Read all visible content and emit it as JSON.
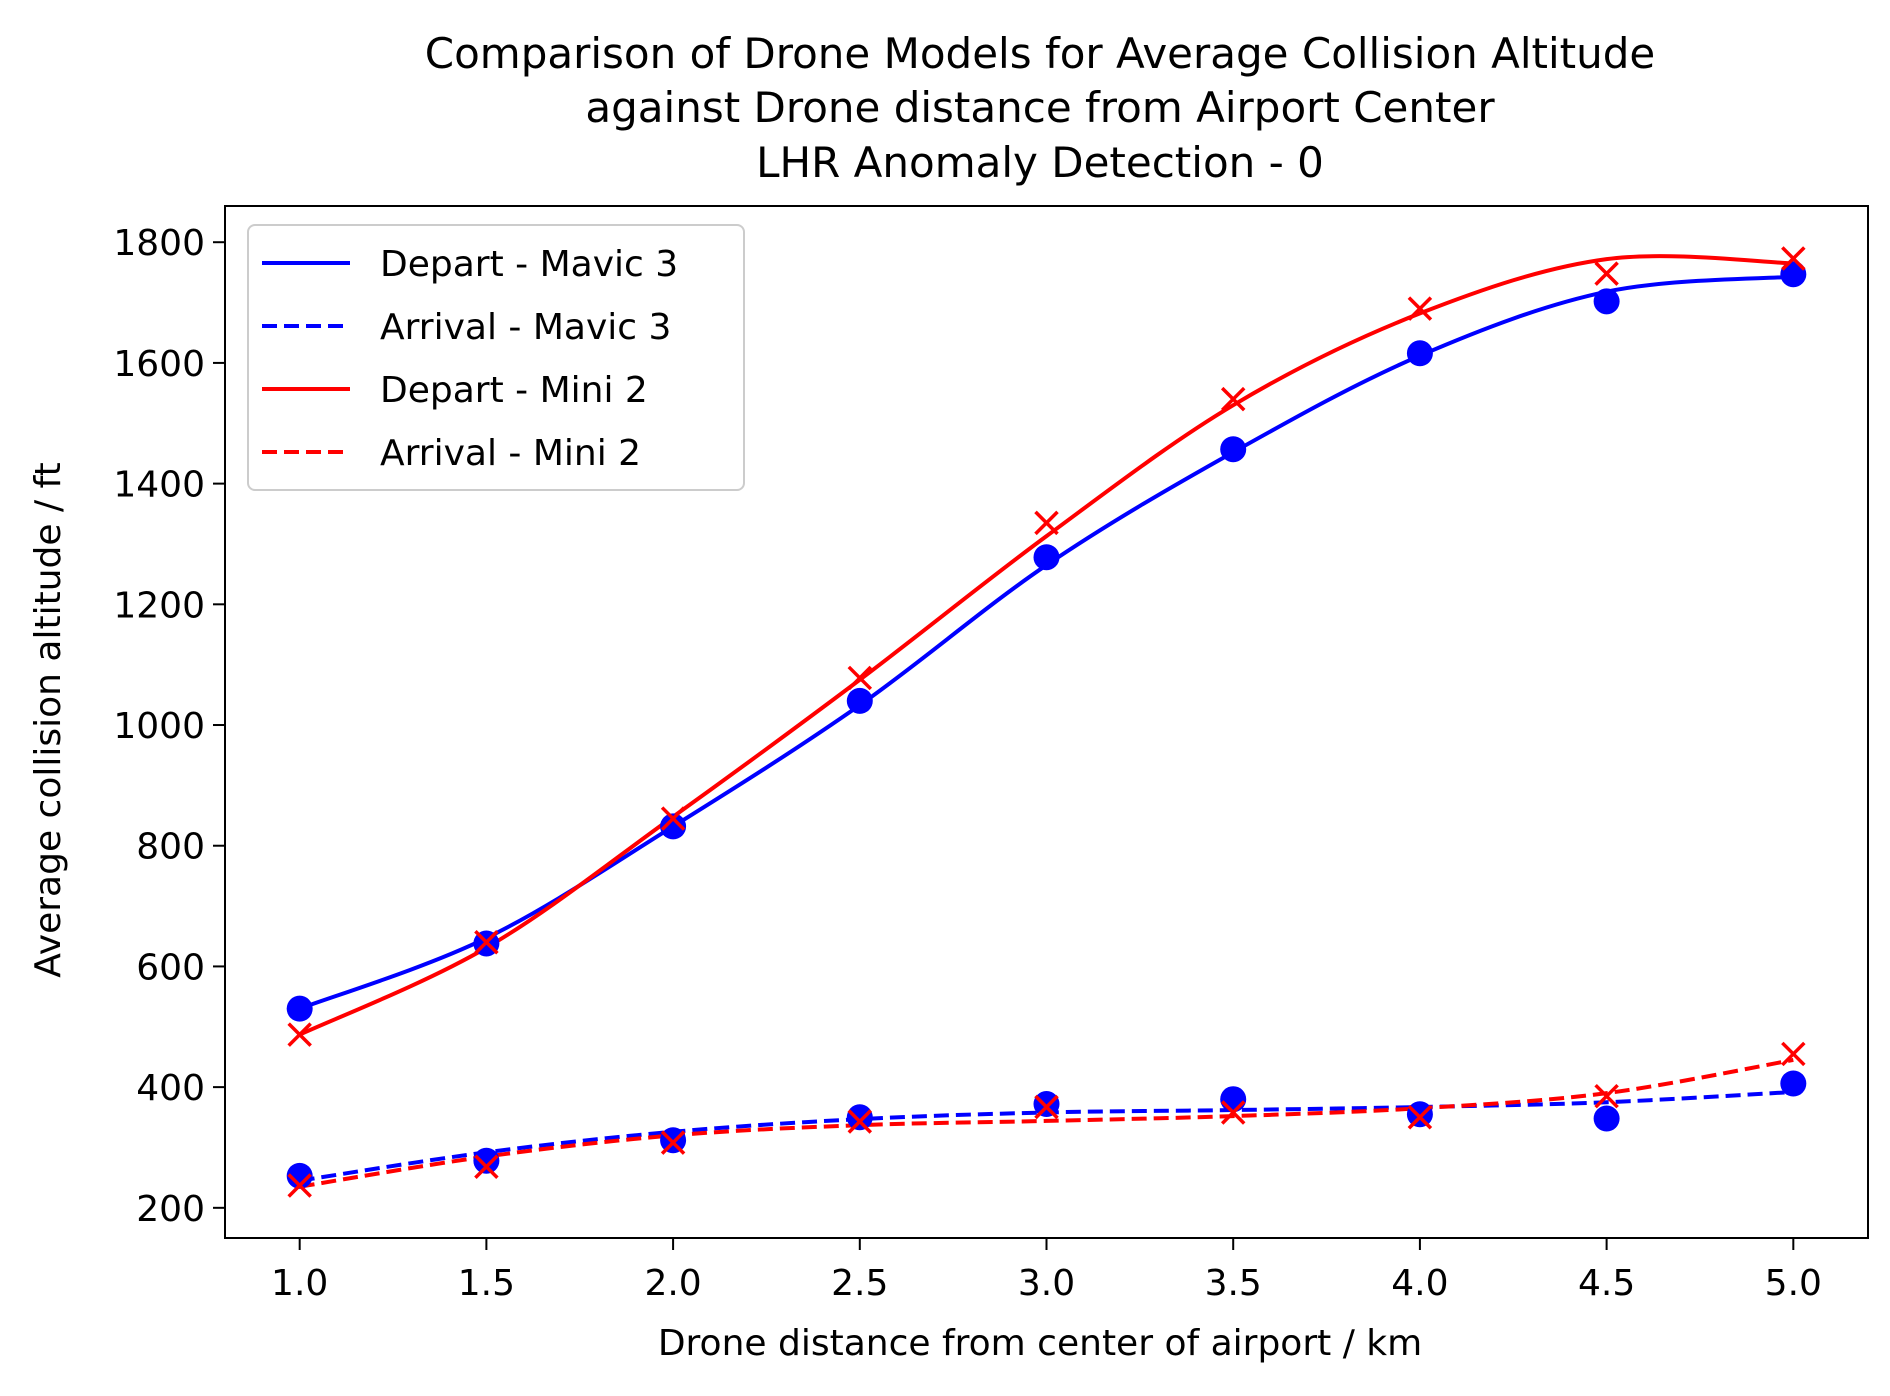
{
  "chart_data": {
    "type": "line",
    "title_lines": [
      "Comparison of Drone Models for Average Collision Altitude",
      "against Drone distance from Airport Center",
      "LHR Anomaly Detection - 0"
    ],
    "xlabel": "Drone distance from center of airport / km",
    "ylabel": "Average collision altitude / ft",
    "xlim": [
      0.8,
      5.2
    ],
    "ylim": [
      150,
      1860
    ],
    "xticks": [
      1.0,
      1.5,
      2.0,
      2.5,
      3.0,
      3.5,
      4.0,
      4.5,
      5.0
    ],
    "xtick_labels": [
      "1.0",
      "1.5",
      "2.0",
      "2.5",
      "3.0",
      "3.5",
      "4.0",
      "4.5",
      "5.0"
    ],
    "yticks": [
      200,
      400,
      600,
      800,
      1000,
      1200,
      1400,
      1600,
      1800
    ],
    "ytick_labels": [
      "200",
      "400",
      "600",
      "800",
      "1000",
      "1200",
      "1400",
      "1600",
      "1800"
    ],
    "grid": false,
    "legend_position": "top-left",
    "x": [
      1.0,
      1.5,
      2.0,
      2.5,
      3.0,
      3.5,
      4.0,
      4.5,
      5.0
    ],
    "series": [
      {
        "name": "Depart - Mavic 3",
        "color": "#0000ff",
        "line_style": "solid",
        "marker": "circle",
        "points": [
          530,
          638,
          832,
          1040,
          1278,
          1457,
          1616,
          1702,
          1747
        ],
        "fit": [
          530,
          647,
          832,
          1033,
          1265,
          1452,
          1612,
          1718,
          1743
        ]
      },
      {
        "name": "Arrival - Mavic 3",
        "color": "#0000ff",
        "line_style": "dashed",
        "marker": "circle",
        "points": [
          253,
          278,
          312,
          350,
          372,
          380,
          355,
          348,
          406
        ],
        "fit": [
          245,
          292,
          326,
          347,
          358,
          362,
          367,
          375,
          392
        ]
      },
      {
        "name": "Depart - Mini 2",
        "color": "#ff0000",
        "line_style": "solid",
        "marker": "x",
        "points": [
          487,
          640,
          845,
          1078,
          1335,
          1540,
          1690,
          1748,
          1773
        ],
        "fit": [
          487,
          631,
          848,
          1075,
          1313,
          1530,
          1682,
          1772,
          1765
        ]
      },
      {
        "name": "Arrival - Mini 2",
        "color": "#ff0000",
        "line_style": "dashed",
        "marker": "x",
        "points": [
          237,
          268,
          308,
          343,
          367,
          358,
          350,
          385,
          455
        ],
        "fit": [
          235,
          285,
          320,
          337,
          344,
          352,
          365,
          390,
          445
        ]
      }
    ]
  }
}
